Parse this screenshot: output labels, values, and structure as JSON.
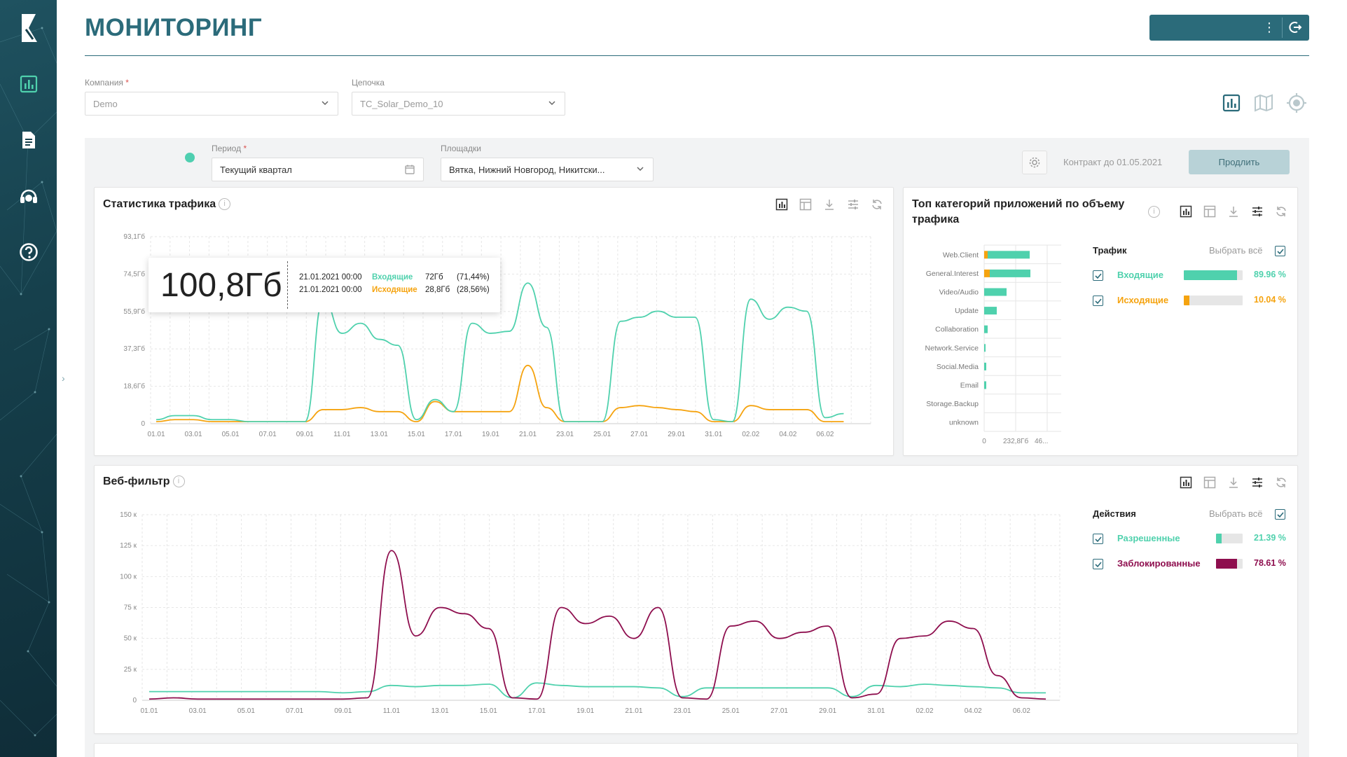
{
  "app": {
    "title": "МОНИТОРИНГ"
  },
  "sidebar": {
    "items": [
      {
        "name": "monitoring",
        "icon": "bar-chart-icon"
      },
      {
        "name": "reports",
        "icon": "document-icon"
      },
      {
        "name": "support",
        "icon": "support-agent-icon"
      },
      {
        "name": "help",
        "icon": "question-icon"
      }
    ],
    "collapse_label": "›"
  },
  "header": {
    "menu_icon": "more-vertical-icon",
    "logout_icon": "logout-icon"
  },
  "filters": {
    "company": {
      "label": "Компания",
      "required": "*",
      "value": "Demo"
    },
    "chain": {
      "label": "Цепочка",
      "value": "TC_Solar_Demo_10"
    },
    "period": {
      "label": "Период",
      "required": "*",
      "value": "Текущий квартал"
    },
    "sites": {
      "label": "Площадки",
      "value": "Вятка, Нижний Новгород, Никитски..."
    }
  },
  "contract": {
    "text": "Контракт до 01.05.2021",
    "extend_label": "Продлить"
  },
  "traffic_panel": {
    "title": "Статистика трафика",
    "info": "i",
    "y_ticks": [
      "93,1Гб",
      "74,5Гб",
      "55,9Гб",
      "37,3Гб",
      "18,6Гб",
      "0"
    ],
    "x_ticks": [
      "01.01",
      "03.01",
      "05.01",
      "07.01",
      "09.01",
      "11.01",
      "13.01",
      "15.01",
      "17.01",
      "19.01",
      "21.01",
      "23.01",
      "25.01",
      "27.01",
      "29.01",
      "31.01",
      "02.02",
      "04.02",
      "06.02"
    ],
    "tooltip": {
      "total": "100,8Гб",
      "rows": [
        {
          "date": "21.01.2021 00:00",
          "series": "Входящие",
          "value": "72Гб",
          "pct": "(71,44%)"
        },
        {
          "date": "21.01.2021 00:00",
          "series": "Исходящие",
          "value": "28,8Гб",
          "pct": "(28,56%)"
        }
      ]
    }
  },
  "apps_panel": {
    "title_line1": "Топ категорий приложений по объему",
    "title_line2": "трафика",
    "info": "i",
    "categories": [
      "Web.Client",
      "General.Interest",
      "Video/Audio",
      "Update",
      "Collaboration",
      "Network.Service",
      "Social.Media",
      "Email",
      "Storage.Backup",
      "unknown"
    ],
    "x_ticks": [
      "0",
      "232,8Гб",
      "46..."
    ],
    "legend": {
      "head": "Трафик",
      "select_all": "Выбрать всё",
      "items": [
        {
          "name": "Входящие",
          "pct": "89.96 %",
          "fraction": 0.8996,
          "color": "#4fd1ad"
        },
        {
          "name": "Исходящие",
          "pct": "10.04 %",
          "fraction": 0.1004,
          "color": "#f5a30f"
        }
      ]
    }
  },
  "webfilter_panel": {
    "title": "Веб-фильтр",
    "info": "i",
    "y_ticks": [
      "150 к",
      "125 к",
      "100 к",
      "75 к",
      "50 к",
      "25 к",
      "0"
    ],
    "x_ticks": [
      "01.01",
      "03.01",
      "05.01",
      "07.01",
      "09.01",
      "11.01",
      "13.01",
      "15.01",
      "17.01",
      "19.01",
      "21.01",
      "23.01",
      "25.01",
      "27.01",
      "29.01",
      "31.01",
      "02.02",
      "04.02",
      "06.02"
    ],
    "legend": {
      "head": "Действия",
      "select_all": "Выбрать всё",
      "items": [
        {
          "name": "Разрешенные",
          "pct": "21.39 %",
          "fraction": 0.2139,
          "color": "#4fd1ad"
        },
        {
          "name": "Заблокированные",
          "pct": "78.61 %",
          "fraction": 0.7861,
          "color": "#8e0e4e"
        }
      ]
    }
  },
  "colors": {
    "accent": "#2b6b7a",
    "incoming": "#4fd1ad",
    "outgoing": "#f5a30f",
    "blocked": "#8e0e4e"
  }
}
